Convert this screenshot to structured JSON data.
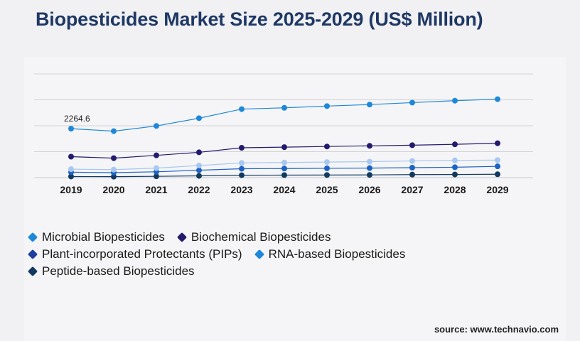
{
  "title": "Biopesticides Market Size 2025-2029 (US$ Million)",
  "source": "source: www.technavio.com",
  "chart_data": {
    "type": "line",
    "x": [
      "2019",
      "2020",
      "2021",
      "2022",
      "2023",
      "2024",
      "2025",
      "2026",
      "2027",
      "2028",
      "2029"
    ],
    "ylim": [
      0,
      4800
    ],
    "grid": true,
    "legend_position": "bottom",
    "series": [
      {
        "name": "Microbial Biopesticides",
        "color": "#1e88d8",
        "values": [
          2264.6,
          2150,
          2390,
          2750,
          3170,
          3230,
          3310,
          3380,
          3470,
          3560,
          3630
        ]
      },
      {
        "name": "Biochemical Biopesticides",
        "color": "#231a6e",
        "values": [
          970,
          900,
          1030,
          1170,
          1380,
          1410,
          1440,
          1470,
          1500,
          1540,
          1590
        ]
      },
      {
        "name": "Plant-incorporated Protectants (PIPs)",
        "color": "#a8c8f0",
        "values": [
          390,
          370,
          440,
          560,
          680,
          700,
          720,
          740,
          770,
          800,
          810
        ]
      },
      {
        "name": "RNA-based Biopesticides",
        "color": "#1d63c4",
        "values": [
          250,
          230,
          270,
          340,
          410,
          420,
          430,
          440,
          460,
          480,
          520
        ]
      },
      {
        "name": "Peptide-based Biopesticides",
        "color": "#123a60",
        "values": [
          50,
          45,
          60,
          80,
          110,
          115,
          120,
          125,
          140,
          145,
          155
        ]
      }
    ],
    "annotations": [
      {
        "series": 0,
        "index": 0,
        "text": "2264.6"
      }
    ]
  },
  "legend": [
    {
      "label": "Microbial Biopesticides",
      "color": "#1e88d8"
    },
    {
      "label": "Biochemical Biopesticides",
      "color": "#231a6e"
    },
    {
      "label": "Plant-incorporated Protectants (PIPs)",
      "color": "#1f3fa0"
    },
    {
      "label": "RNA-based Biopesticides",
      "color": "#1e88d8"
    },
    {
      "label": "Peptide-based Biopesticides",
      "color": "#123a60"
    }
  ]
}
